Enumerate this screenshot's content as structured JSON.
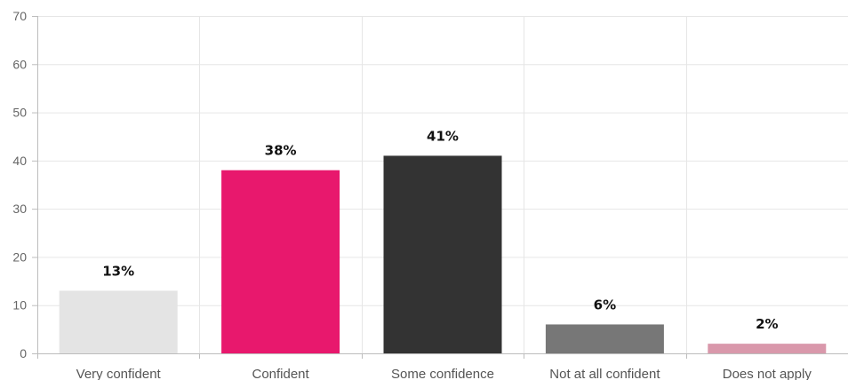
{
  "chart_data": {
    "type": "bar",
    "title": "",
    "xlabel": "",
    "ylabel": "",
    "ylim": [
      0,
      70
    ],
    "yticks": [
      0,
      10,
      20,
      30,
      40,
      50,
      60,
      70
    ],
    "grid": true,
    "legend": "none",
    "categories": [
      "Very confident",
      "Confident",
      "Some confidence",
      "Not at all confident",
      "Does not apply"
    ],
    "values": [
      13,
      38,
      41,
      6,
      2
    ],
    "data_labels": [
      "13%",
      "38%",
      "41%",
      "6%",
      "2%"
    ],
    "colors": [
      "#e4e4e4",
      "#e8186d",
      "#333333",
      "#777777",
      "#d998ab"
    ]
  }
}
